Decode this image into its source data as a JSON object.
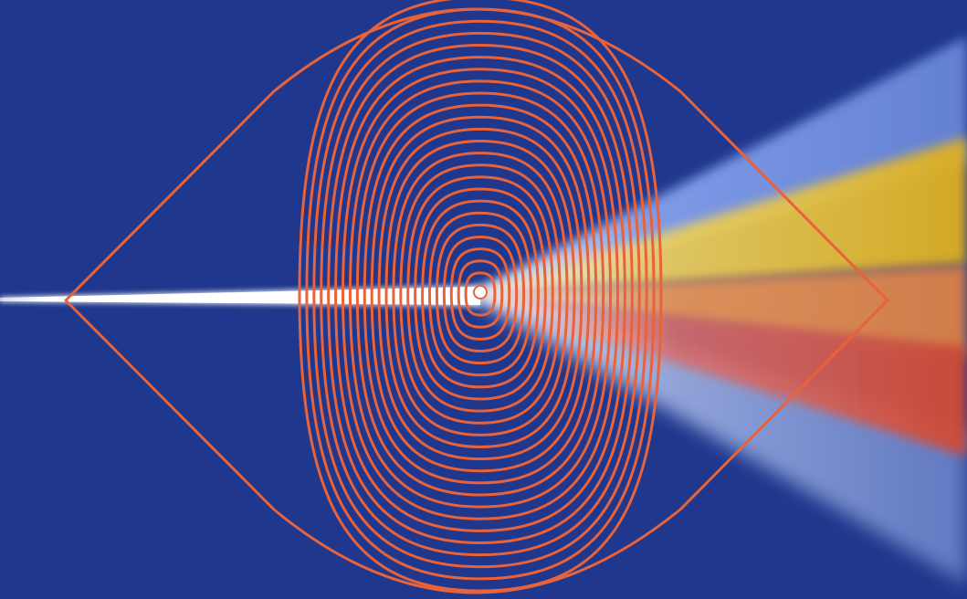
{
  "scene": {
    "background_color": "#1f378c",
    "outline_color": "#e8633a",
    "ring_color": "#e8633a",
    "incoming_beam_color": "#ffffff",
    "spectrum": [
      {
        "name": "blue",
        "color": "#8aa6f2"
      },
      {
        "name": "yellow",
        "color": "#f2c41a"
      },
      {
        "name": "orange",
        "color": "#e8883f"
      },
      {
        "name": "red",
        "color": "#d94a2f"
      },
      {
        "name": "light-blue",
        "color": "#a9bdf0"
      }
    ],
    "icon": "prism-lens-logo"
  }
}
